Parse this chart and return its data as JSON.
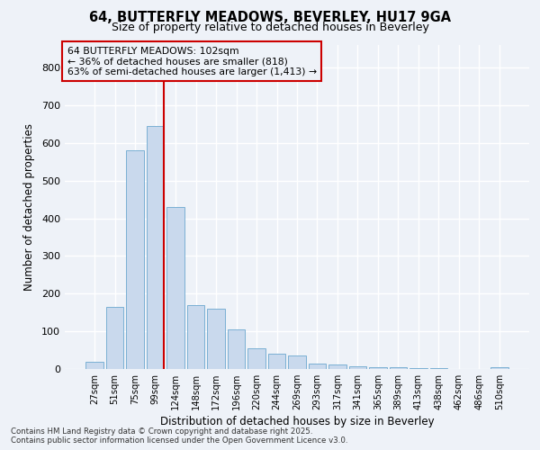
{
  "title_line1": "64, BUTTERFLY MEADOWS, BEVERLEY, HU17 9GA",
  "title_line2": "Size of property relative to detached houses in Beverley",
  "xlabel": "Distribution of detached houses by size in Beverley",
  "ylabel": "Number of detached properties",
  "bar_labels": [
    "27sqm",
    "51sqm",
    "75sqm",
    "99sqm",
    "124sqm",
    "148sqm",
    "172sqm",
    "196sqm",
    "220sqm",
    "244sqm",
    "269sqm",
    "293sqm",
    "317sqm",
    "341sqm",
    "365sqm",
    "389sqm",
    "413sqm",
    "438sqm",
    "462sqm",
    "486sqm",
    "510sqm"
  ],
  "bar_values": [
    20,
    165,
    580,
    645,
    430,
    170,
    160,
    105,
    55,
    40,
    35,
    15,
    12,
    8,
    5,
    5,
    3,
    2,
    1,
    1,
    5
  ],
  "bar_color": "#c9d9ed",
  "bar_edge_color": "#7ab0d4",
  "marker_label_line1": "64 BUTTERFLY MEADOWS: 102sqm",
  "marker_label_line2": "← 36% of detached houses are smaller (818)",
  "marker_label_line3": "63% of semi-detached houses are larger (1,413) →",
  "vline_color": "#cc0000",
  "annotation_box_edge_color": "#cc0000",
  "vline_x": 3.43,
  "ylim": [
    0,
    860
  ],
  "yticks": [
    0,
    100,
    200,
    300,
    400,
    500,
    600,
    700,
    800
  ],
  "background_color": "#eef2f8",
  "grid_color": "#ffffff",
  "footer_line1": "Contains HM Land Registry data © Crown copyright and database right 2025.",
  "footer_line2": "Contains public sector information licensed under the Open Government Licence v3.0."
}
